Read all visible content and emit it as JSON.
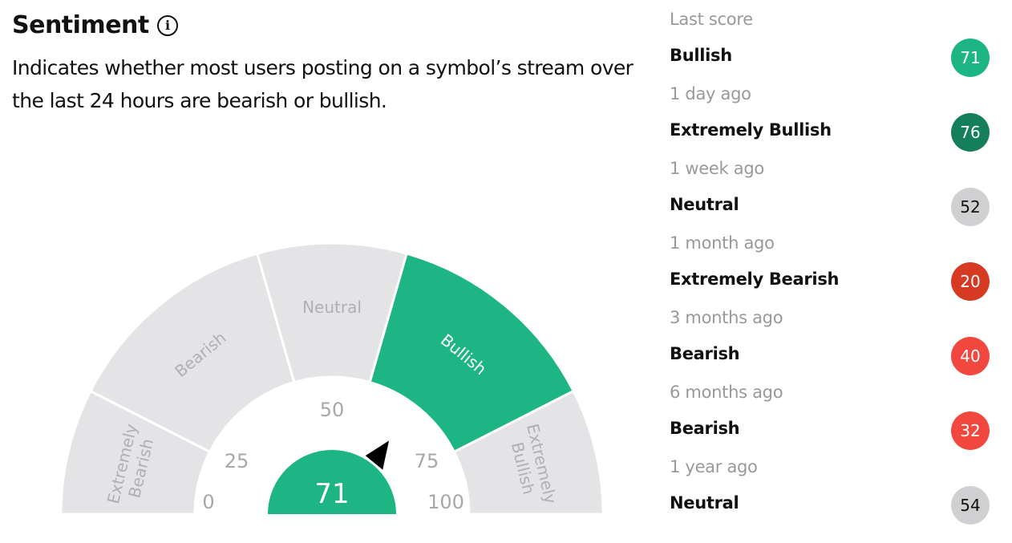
{
  "header": {
    "title": "Sentiment",
    "info_icon": "info-icon",
    "description": "Indicates whether most users posting on a symbol’s stream over the last 24 hours are bearish or bullish."
  },
  "gauge": {
    "score": 71,
    "ticks": [
      "0",
      "25",
      "50",
      "75",
      "100"
    ],
    "segments": [
      {
        "label": [
          "Extremely",
          "Bearish"
        ],
        "active": false
      },
      {
        "label": [
          "Bearish"
        ],
        "active": false
      },
      {
        "label": [
          "Neutral"
        ],
        "active": false
      },
      {
        "label": [
          "Bullish"
        ],
        "active": true
      },
      {
        "label": [
          "Extremely",
          "Bullish"
        ],
        "active": false
      }
    ],
    "colors": {
      "active": "#1db584",
      "inactive": "#e4e4e6",
      "inactive_text": "#b0b0b4",
      "tick_text": "#a8a8a8",
      "pointer": "#000000"
    }
  },
  "history": [
    {
      "when": "Last score",
      "label": "Bullish",
      "score": "71",
      "color": "#1db584"
    },
    {
      "when": "1 day ago",
      "label": "Extremely Bullish",
      "score": "76",
      "color": "#157f5c"
    },
    {
      "when": "1 week ago",
      "label": "Neutral",
      "score": "52",
      "color": "#d0d0d2",
      "dark": true
    },
    {
      "when": "1 month ago",
      "label": "Extremely Bearish",
      "score": "20",
      "color": "#d63a22"
    },
    {
      "when": "3 months ago",
      "label": "Bearish",
      "score": "40",
      "color": "#f2473f"
    },
    {
      "when": "6 months ago",
      "label": "Bearish",
      "score": "32",
      "color": "#f2473f"
    },
    {
      "when": "1 year ago",
      "label": "Neutral",
      "score": "54",
      "color": "#d0d0d2",
      "dark": true
    }
  ]
}
